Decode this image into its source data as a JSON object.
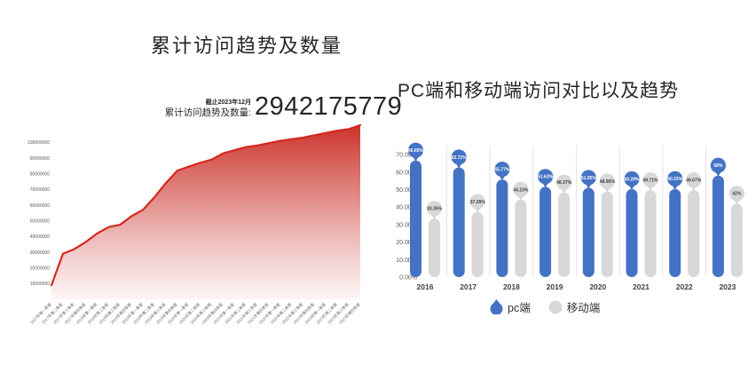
{
  "page": {
    "background": "#ffffff"
  },
  "chart_data": [
    {
      "type": "area",
      "title": "累计访问趋势及数量",
      "annotation_date": "截止2023年12月",
      "annotation_label": "累计访问趋势及数量:",
      "annotation_value": "2942175779",
      "x": [
        "2017年第一季度",
        "2017年第二季度",
        "2017年第三季度",
        "2017年第四季度",
        "2018年第一季度",
        "2018年第二季度",
        "2018年第三季度",
        "2018年第四季度",
        "2019年第一季度",
        "2019年第二季度",
        "2019年第三季度",
        "2019年第四季度",
        "2020年第一季度",
        "2020年第二季度",
        "2020年第三季度",
        "2020年第四季度",
        "2021年第一季度",
        "2021年第二季度",
        "2021年第三季度",
        "2021年第四季度",
        "2022年第一季度",
        "2022年第二季度",
        "2022年第三季度",
        "2022年第四季度",
        "2023年第一季度",
        "2023年第二季度",
        "2023年第三季度",
        "2023年第四季度"
      ],
      "values": [
        9000000,
        29000000,
        32000000,
        36500000,
        42000000,
        46000000,
        47500000,
        53000000,
        57000000,
        65000000,
        74000000,
        82000000,
        84500000,
        87000000,
        89000000,
        93000000,
        95000000,
        97000000,
        98000000,
        99500000,
        101000000,
        102000000,
        103000000,
        104500000,
        106000000,
        107500000,
        108500000,
        111000000
      ],
      "yticks": [
        100000000,
        90000000,
        80000000,
        70000000,
        60000000,
        50000000,
        40000000,
        30000000,
        20000000,
        10000000
      ],
      "ylim": [
        0,
        117000000
      ],
      "grid": false,
      "legend_position": "none",
      "line_color": "#d5281e",
      "fill_color": "#c9281f"
    },
    {
      "type": "bar",
      "title": "PC端和移动端访问对比以及趋势",
      "categories": [
        "2016",
        "2017",
        "2018",
        "2019",
        "2020",
        "2021",
        "2022",
        "2023"
      ],
      "series": [
        {
          "name": "pc端",
          "color": "#4472c4",
          "values": [
            66.65,
            62.72,
            55.77,
            51.63,
            51.05,
            50.29,
            50.33,
            58
          ],
          "labels": [
            "66.65%",
            "62.72%",
            "55.77%",
            "51.63%",
            "51.05%",
            "50.29%",
            "50.33%",
            "58%"
          ],
          "label_text_color": "#ffffff"
        },
        {
          "name": "移动端",
          "color": "#d8d8d8",
          "values": [
            33.35,
            37.28,
            44.23,
            48.37,
            48.95,
            49.71,
            49.67,
            42
          ],
          "labels": [
            "33.35%",
            "37.28%",
            "44.23%",
            "48.37%",
            "48.95%",
            "49.71%",
            "49.67%",
            "42%"
          ],
          "label_text_color": "#404040"
        }
      ],
      "yticks": [
        "70.00%",
        "60.00%",
        "50.00%",
        "40.00%",
        "30.00%",
        "20.00%",
        "10.00%",
        "0.00%"
      ],
      "ylim": [
        0,
        70
      ],
      "grid": false,
      "legend_position": "bottom"
    }
  ]
}
